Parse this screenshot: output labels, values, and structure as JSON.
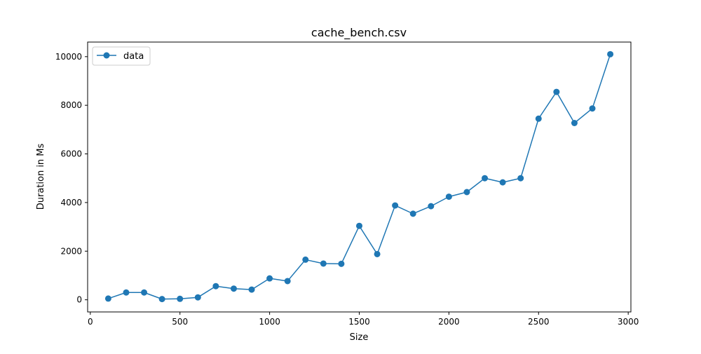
{
  "chart_data": {
    "type": "line",
    "title": "cache_bench.csv",
    "xlabel": "Size",
    "ylabel": "Duration in Ms",
    "xlim": [
      -15,
      3015
    ],
    "ylim": [
      -500,
      10600
    ],
    "xticks": [
      0,
      500,
      1000,
      1500,
      2000,
      2500,
      3000
    ],
    "yticks": [
      0,
      2000,
      4000,
      6000,
      8000,
      10000
    ],
    "grid": false,
    "legend_position": "top-left",
    "series": [
      {
        "name": "data",
        "color": "#1f77b4",
        "marker": "circle",
        "x": [
          100,
          200,
          300,
          400,
          500,
          600,
          700,
          800,
          900,
          1000,
          1100,
          1200,
          1300,
          1400,
          1500,
          1600,
          1700,
          1800,
          1900,
          2000,
          2100,
          2200,
          2300,
          2400,
          2500,
          2600,
          2700,
          2800,
          2900
        ],
        "y": [
          50,
          300,
          300,
          30,
          40,
          100,
          560,
          460,
          420,
          880,
          770,
          1650,
          1490,
          1480,
          3040,
          1880,
          3880,
          3540,
          3850,
          4240,
          4430,
          5000,
          4830,
          5000,
          7450,
          8550,
          7270,
          7870,
          10100
        ]
      }
    ]
  }
}
